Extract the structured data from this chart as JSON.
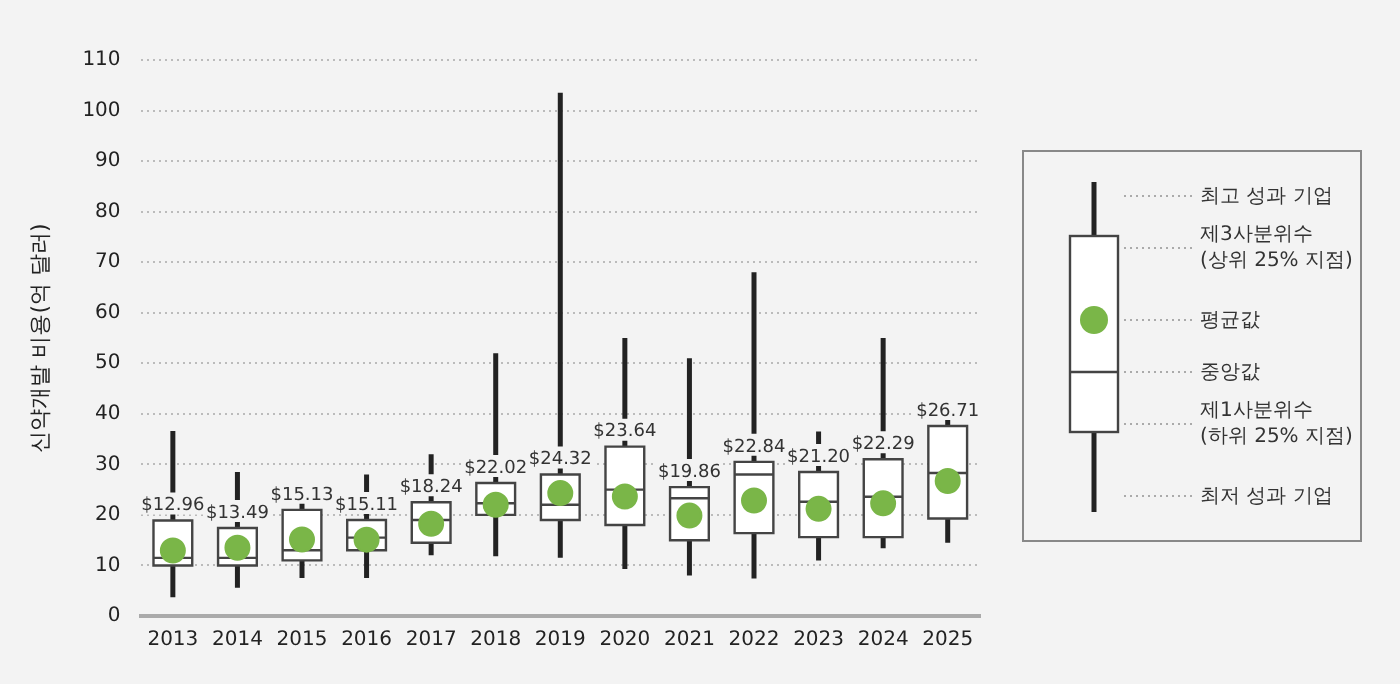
{
  "chart_data": {
    "type": "box",
    "ylabel": "신약개발 비용(억 달러)",
    "categories": [
      "2013",
      "2014",
      "2015",
      "2016",
      "2017",
      "2018",
      "2019",
      "2020",
      "2021",
      "2022",
      "2023",
      "2024",
      "2025"
    ],
    "ylim": [
      0,
      110
    ],
    "yticks": [
      0,
      10,
      20,
      30,
      40,
      50,
      60,
      70,
      80,
      90,
      100,
      110
    ],
    "grid": "y",
    "marker": "circle",
    "series": [
      {
        "color": "#ffffff",
        "value_labels": [
          "$12.96",
          "$13.49",
          "$15.13",
          "$15.11",
          "$18.24",
          "$22.02",
          "$24.32",
          "$23.64",
          "$19.86",
          "$22.84",
          "$21.20",
          "$22.29",
          "$26.71"
        ],
        "boxes": [
          {
            "low": 3.7,
            "q1": 10,
            "median": 11.5,
            "q3": 18.9,
            "high": 36.6,
            "mean": 12.96
          },
          {
            "low": 5.6,
            "q1": 10,
            "median": 11.5,
            "q3": 17.4,
            "high": 28.5,
            "mean": 13.49
          },
          {
            "low": 7.5,
            "q1": 11,
            "median": 13,
            "q3": 21,
            "high": 25,
            "mean": 15.13
          },
          {
            "low": 7.5,
            "q1": 13,
            "median": 15.5,
            "q3": 19,
            "high": 28,
            "mean": 15.11
          },
          {
            "low": 12,
            "q1": 14.5,
            "median": 19,
            "q3": 22.5,
            "high": 32,
            "mean": 18.24
          },
          {
            "low": 11.8,
            "q1": 20,
            "median": 22.3,
            "q3": 26.3,
            "high": 52,
            "mean": 22.02
          },
          {
            "low": 11.5,
            "q1": 19,
            "median": 22,
            "q3": 28,
            "high": 103.5,
            "mean": 24.32
          },
          {
            "low": 9.3,
            "q1": 18,
            "median": 25,
            "q3": 33.5,
            "high": 55,
            "mean": 23.64
          },
          {
            "low": 8,
            "q1": 15,
            "median": 23.3,
            "q3": 25.5,
            "high": 51,
            "mean": 19.86
          },
          {
            "low": 7.4,
            "q1": 16.4,
            "median": 28,
            "q3": 30.5,
            "high": 68,
            "mean": 22.84
          },
          {
            "low": 11,
            "q1": 15.6,
            "median": 22.6,
            "q3": 28.5,
            "high": 36.5,
            "mean": 21.2
          },
          {
            "low": 13.4,
            "q1": 15.6,
            "median": 23.6,
            "q3": 31,
            "high": 55,
            "mean": 22.29
          },
          {
            "low": 14.5,
            "q1": 19.3,
            "median": 28.3,
            "q3": 37.6,
            "high": 43,
            "mean": 26.71
          }
        ]
      }
    ],
    "annotations": [
      "최고 성과 기업",
      "제3사분위수\n(상위 25% 지점)",
      "평균값",
      "중앙값",
      "제1사분위수\n(하위 25% 지점)",
      "최저 성과 기업"
    ]
  }
}
